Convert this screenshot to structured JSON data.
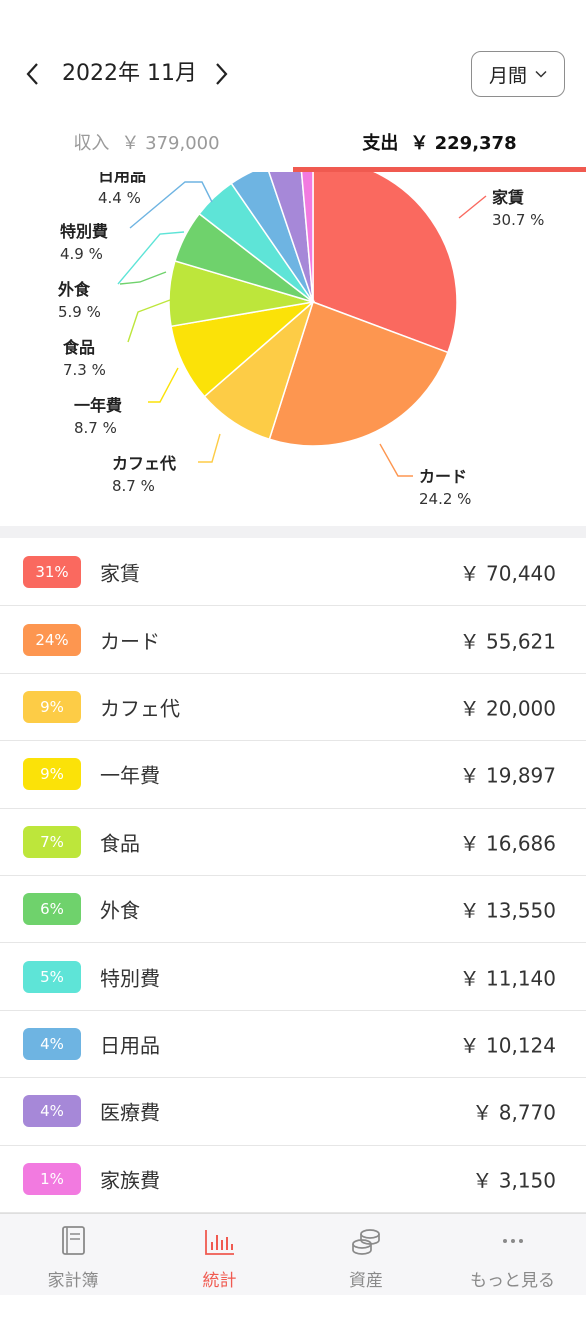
{
  "header": {
    "month_label": "2022年 11月",
    "period_label": "月間"
  },
  "tabs": {
    "income_label": "収入",
    "income_amount": "￥ 379,000",
    "expense_label": "支出",
    "expense_amount": "￥ 229,378"
  },
  "chart_data": {
    "type": "pie",
    "categories": [
      "家賃",
      "カード",
      "カフェ代",
      "一年費",
      "食品",
      "外食",
      "特別費",
      "日用品",
      "医療費",
      "家族費"
    ],
    "values": [
      30.7,
      24.2,
      8.7,
      8.7,
      7.3,
      5.9,
      4.9,
      4.4,
      3.8,
      1.4
    ],
    "labels": [
      "30.7 %",
      "24.2 %",
      "8.7 %",
      "8.7 %",
      "7.3 %",
      "5.9 %",
      "4.9 %",
      "4.4 %",
      "",
      ""
    ],
    "colors": [
      "#fa695f",
      "#fd9650",
      "#fdcc46",
      "#fbe208",
      "#bde63b",
      "#6fd26c",
      "#5ee4d7",
      "#6eb4e2",
      "#a688d8",
      "#f27ae0"
    ]
  },
  "breakdown": [
    {
      "percent": "31%",
      "name": "家賃",
      "amount": "￥ 70,440",
      "color": "#fa695f"
    },
    {
      "percent": "24%",
      "name": "カード",
      "amount": "￥ 55,621",
      "color": "#fd9650"
    },
    {
      "percent": "9%",
      "name": "カフェ代",
      "amount": "￥ 20,000",
      "color": "#fdcc46"
    },
    {
      "percent": "9%",
      "name": "一年費",
      "amount": "￥ 19,897",
      "color": "#fbe208"
    },
    {
      "percent": "7%",
      "name": "食品",
      "amount": "￥ 16,686",
      "color": "#bde63b"
    },
    {
      "percent": "6%",
      "name": "外食",
      "amount": "￥ 13,550",
      "color": "#6fd26c"
    },
    {
      "percent": "5%",
      "name": "特別費",
      "amount": "￥ 11,140",
      "color": "#5ee4d7"
    },
    {
      "percent": "4%",
      "name": "日用品",
      "amount": "￥ 10,124",
      "color": "#6eb4e2"
    },
    {
      "percent": "4%",
      "name": "医療費",
      "amount": "￥ 8,770",
      "color": "#a688d8"
    },
    {
      "percent": "1%",
      "name": "家族費",
      "amount": "￥ 3,150",
      "color": "#f27ae0"
    }
  ],
  "bottom_nav": {
    "items": [
      {
        "label": "家計簿",
        "icon": "book-icon"
      },
      {
        "label": "統計",
        "icon": "chart-icon",
        "active": true
      },
      {
        "label": "資産",
        "icon": "coins-icon"
      },
      {
        "label": "もっと見る",
        "icon": "more-icon"
      }
    ],
    "accent": "#f05a50"
  }
}
